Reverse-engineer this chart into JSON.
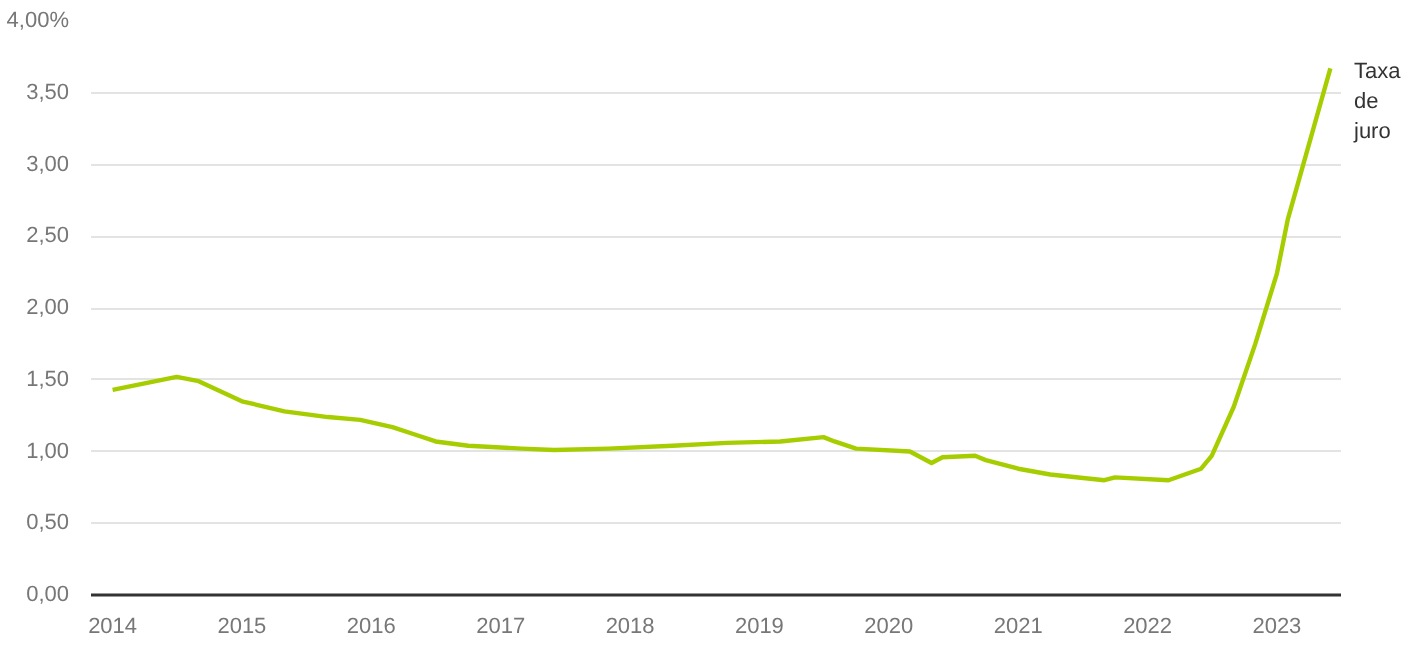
{
  "chart_data": {
    "type": "line",
    "x": [
      "2014-01",
      "2014-07",
      "2014-09",
      "2014-11",
      "2015-01",
      "2015-05",
      "2015-09",
      "2015-12",
      "2016-03",
      "2016-05",
      "2016-07",
      "2016-10",
      "2017-03",
      "2017-06",
      "2017-11",
      "2018-05",
      "2018-10",
      "2019-03",
      "2019-07",
      "2019-08",
      "2019-10",
      "2020-03",
      "2020-05",
      "2020-06",
      "2020-09",
      "2020-10",
      "2021-01",
      "2021-04",
      "2021-09",
      "2021-10",
      "2022-03",
      "2022-06",
      "2022-07",
      "2022-09",
      "2022-11",
      "2023-01",
      "2023-02",
      "2023-06"
    ],
    "series": [
      {
        "name": "Taxa de juro",
        "color": "#a6cd00",
        "values": [
          1.43,
          1.52,
          1.49,
          1.42,
          1.35,
          1.28,
          1.24,
          1.22,
          1.17,
          1.12,
          1.07,
          1.04,
          1.02,
          1.01,
          1.02,
          1.04,
          1.06,
          1.07,
          1.1,
          1.07,
          1.02,
          1.0,
          0.92,
          0.96,
          0.97,
          0.94,
          0.88,
          0.84,
          0.8,
          0.82,
          0.8,
          0.88,
          0.97,
          1.31,
          1.75,
          2.24,
          2.62,
          3.67
        ]
      }
    ],
    "xlim": [
      "2013-11",
      "2023-07"
    ],
    "xticks": [
      "2014",
      "2015",
      "2016",
      "2017",
      "2018",
      "2019",
      "2020",
      "2021",
      "2022",
      "2023"
    ],
    "ylim": [
      0,
      4
    ],
    "yticks": [
      {
        "value": 0,
        "label": "0,00"
      },
      {
        "value": 0.5,
        "label": "0,50"
      },
      {
        "value": 1,
        "label": "1,00"
      },
      {
        "value": 1.5,
        "label": "1,50"
      },
      {
        "value": 2,
        "label": "2,00"
      },
      {
        "value": 2.5,
        "label": "2,50"
      },
      {
        "value": 3,
        "label": "3,00"
      },
      {
        "value": 3.5,
        "label": "3,50"
      },
      {
        "value": 4,
        "label": "4,00%"
      }
    ],
    "grid": "y",
    "marker": "none",
    "line_style": "solid"
  }
}
